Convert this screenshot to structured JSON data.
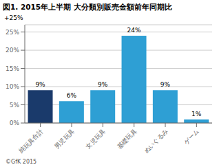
{
  "chart_data": {
    "type": "bar",
    "title": "図1. 2015年上半期 大分類別販売金額前年同期比",
    "categories": [
      "純玩具合計",
      "男児玩具",
      "女児玩具",
      "基礎玩具",
      "ぬいぐるみ",
      "ゲーム"
    ],
    "values": [
      9,
      6,
      9,
      24,
      9,
      1
    ],
    "value_labels": [
      "9%",
      "6%",
      "9%",
      "24%",
      "9%",
      "1%"
    ],
    "data_labels": true,
    "colors": [
      "#1a3a6b",
      "#2e9fd4",
      "#2e9fd4",
      "#2e9fd4",
      "#2e9fd4",
      "#2e9fd4"
    ],
    "ylim": [
      0,
      27
    ],
    "yticks": [
      {
        "value": 0,
        "label": "0%"
      },
      {
        "value": 5,
        "label": "5%"
      },
      {
        "value": 10,
        "label": "10%"
      },
      {
        "value": 15,
        "label": "15%"
      },
      {
        "value": 20,
        "label": "20%"
      },
      {
        "value": 25,
        "label": "25%"
      }
    ],
    "grid": true,
    "annotations": [
      "+25%",
      "©GfK 2015"
    ]
  }
}
